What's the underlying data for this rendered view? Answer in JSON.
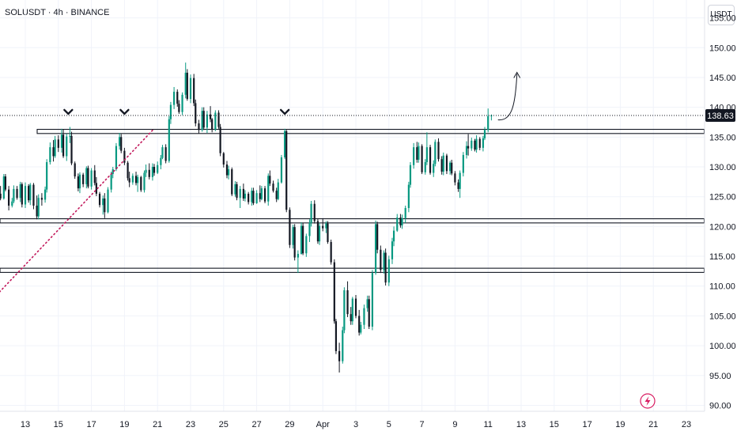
{
  "header": {
    "title": "SOLUSDT · 4h · BINANCE",
    "currency": "USDT"
  },
  "chart_data": {
    "type": "candlestick",
    "symbol": "SOLUSDT",
    "timeframe": "4h",
    "exchange": "BINANCE",
    "ylim": [
      89,
      158
    ],
    "y_ticks": [
      "155.00",
      "150.00",
      "145.00",
      "140.00",
      "135.00",
      "130.00",
      "125.00",
      "120.00",
      "115.00",
      "110.00",
      "105.00",
      "100.00",
      "95.00",
      "90.00"
    ],
    "x_ticks": [
      "13",
      "15",
      "17",
      "19",
      "21",
      "23",
      "25",
      "27",
      "29",
      "Apr",
      "3",
      "5",
      "7",
      "9",
      "11",
      "13",
      "15",
      "17",
      "19",
      "21",
      "23"
    ],
    "current_price": "138.63",
    "current_price_value": 138.63,
    "colors": {
      "up": "#089981",
      "down": "#131722",
      "support_line": "#131722",
      "trendline": "#c2185b",
      "grid": "#f0f3fa"
    },
    "horizontal_levels": [
      {
        "upper": 136.3,
        "lower": 135.6
      },
      {
        "upper": 121.3,
        "lower": 120.6
      },
      {
        "upper": 113.0,
        "lower": 112.3
      }
    ],
    "tops_marked": 3,
    "trendline": {
      "from_day": 7.0,
      "from_price": 96.0,
      "to_day": 20.0,
      "to_price": 137.0,
      "style": "dotted"
    },
    "projection": "up",
    "candles": [
      [
        11.5,
        125.5,
        126.8,
        124.4,
        124.7
      ],
      [
        11.7,
        124.7,
        128.8,
        124.5,
        128.4
      ],
      [
        11.8,
        128.4,
        128.8,
        125.9,
        126.2
      ],
      [
        12.0,
        126.2,
        126.8,
        122.7,
        123.5
      ],
      [
        12.2,
        123.5,
        124.8,
        123.2,
        124.2
      ],
      [
        12.3,
        124.2,
        126.9,
        123.9,
        126.3
      ],
      [
        12.5,
        126.3,
        126.8,
        124.5,
        124.8
      ],
      [
        12.7,
        124.8,
        127.5,
        124.1,
        127.1
      ],
      [
        12.8,
        127.1,
        127.4,
        123.2,
        123.7
      ],
      [
        13.0,
        123.7,
        127.4,
        123.1,
        126.8
      ],
      [
        13.2,
        126.8,
        127.1,
        124.0,
        124.4
      ],
      [
        13.3,
        124.4,
        127.3,
        123.6,
        127.0
      ],
      [
        13.5,
        127.0,
        127.3,
        122.9,
        123.5
      ],
      [
        13.7,
        123.5,
        125.2,
        121.2,
        121.7
      ],
      [
        13.8,
        121.7,
        125.4,
        121.2,
        124.8
      ],
      [
        14.0,
        124.8,
        125.6,
        123.5,
        124.5
      ],
      [
        14.2,
        124.5,
        126.7,
        124.0,
        126.2
      ],
      [
        14.3,
        126.2,
        131.3,
        125.7,
        130.8
      ],
      [
        14.5,
        130.8,
        134.1,
        130.4,
        133.3
      ],
      [
        14.7,
        133.3,
        134.5,
        130.9,
        131.8
      ],
      [
        14.8,
        131.8,
        135.2,
        131.5,
        134.6
      ],
      [
        15.0,
        134.6,
        135.3,
        132.5,
        133.2
      ],
      [
        15.2,
        133.2,
        136.4,
        132.4,
        135.4
      ],
      [
        15.3,
        135.4,
        136.3,
        131.5,
        131.8
      ],
      [
        15.5,
        131.8,
        135.6,
        131.0,
        135.1
      ],
      [
        15.7,
        135.1,
        136.7,
        134.0,
        135.2
      ],
      [
        15.8,
        135.2,
        135.9,
        130.3,
        130.6
      ],
      [
        16.0,
        130.6,
        130.9,
        128.0,
        128.4
      ],
      [
        16.2,
        128.4,
        128.9,
        125.9,
        126.4
      ],
      [
        16.3,
        126.4,
        129.1,
        125.6,
        128.7
      ],
      [
        16.5,
        128.7,
        129.0,
        126.6,
        127.1
      ],
      [
        16.7,
        127.1,
        130.1,
        126.4,
        129.8
      ],
      [
        16.8,
        129.8,
        130.2,
        126.4,
        126.7
      ],
      [
        17.0,
        126.7,
        129.8,
        126.2,
        129.4
      ],
      [
        17.2,
        129.4,
        130.3,
        126.9,
        127.3
      ],
      [
        17.3,
        127.3,
        128.3,
        125.1,
        125.5
      ],
      [
        17.5,
        125.5,
        125.8,
        123.2,
        123.6
      ],
      [
        17.7,
        123.6,
        125.2,
        122.0,
        124.7
      ],
      [
        17.8,
        124.7,
        125.6,
        121.4,
        122.4
      ],
      [
        18.0,
        122.4,
        126.6,
        122.2,
        126.2
      ],
      [
        18.2,
        126.2,
        129.2,
        125.7,
        128.8
      ],
      [
        18.3,
        128.8,
        130.0,
        128.1,
        129.6
      ],
      [
        18.5,
        129.6,
        134.0,
        129.3,
        133.5
      ],
      [
        18.7,
        133.5,
        135.7,
        132.9,
        135.0
      ],
      [
        18.8,
        135.0,
        135.5,
        132.3,
        132.7
      ],
      [
        19.0,
        132.7,
        133.2,
        130.3,
        130.7
      ],
      [
        19.2,
        130.7,
        131.0,
        127.7,
        128.1
      ],
      [
        19.3,
        128.1,
        129.2,
        126.6,
        127.4
      ],
      [
        19.5,
        127.4,
        128.9,
        127.0,
        128.5
      ],
      [
        19.7,
        128.5,
        129.2,
        126.9,
        127.3
      ],
      [
        19.8,
        127.3,
        128.7,
        125.8,
        128.3
      ],
      [
        20.0,
        128.3,
        128.5,
        125.8,
        126.1
      ],
      [
        20.2,
        126.1,
        129.4,
        125.7,
        129.0
      ],
      [
        20.3,
        129.0,
        130.4,
        128.3,
        129.5
      ],
      [
        20.5,
        129.5,
        130.6,
        127.9,
        128.3
      ],
      [
        20.7,
        128.3,
        130.6,
        127.7,
        130.0
      ],
      [
        20.8,
        130.0,
        130.5,
        128.5,
        129.0
      ],
      [
        21.0,
        129.0,
        130.9,
        128.8,
        130.3
      ],
      [
        21.2,
        130.3,
        132.0,
        129.6,
        131.5
      ],
      [
        21.3,
        131.5,
        133.7,
        131.3,
        133.3
      ],
      [
        21.5,
        133.3,
        133.8,
        130.6,
        131.0
      ],
      [
        21.7,
        131.0,
        138.5,
        130.7,
        138.0
      ],
      [
        21.8,
        138.0,
        140.9,
        137.2,
        140.4
      ],
      [
        22.0,
        140.4,
        143.4,
        139.7,
        142.6
      ],
      [
        22.2,
        142.6,
        143.0,
        140.1,
        140.6
      ],
      [
        22.3,
        140.6,
        141.2,
        138.9,
        139.2
      ],
      [
        22.5,
        139.2,
        142.5,
        138.7,
        142.1
      ],
      [
        22.7,
        142.1,
        147.5,
        141.5,
        145.8
      ],
      [
        22.8,
        145.8,
        146.4,
        141.1,
        141.4
      ],
      [
        23.0,
        141.4,
        145.5,
        140.7,
        144.9
      ],
      [
        23.2,
        144.9,
        145.6,
        140.2,
        140.7
      ],
      [
        23.3,
        140.7,
        141.3,
        136.8,
        137.3
      ],
      [
        23.5,
        137.3,
        137.9,
        135.6,
        136.2
      ],
      [
        23.7,
        136.2,
        140.0,
        135.9,
        139.4
      ],
      [
        23.8,
        139.4,
        140.0,
        136.2,
        136.6
      ],
      [
        24.0,
        136.6,
        139.4,
        135.7,
        138.8
      ],
      [
        24.2,
        138.8,
        140.2,
        137.5,
        138.0
      ],
      [
        24.3,
        138.0,
        138.2,
        135.8,
        136.3
      ],
      [
        24.5,
        136.3,
        139.5,
        136.0,
        139.1
      ],
      [
        24.7,
        139.1,
        139.5,
        136.4,
        136.7
      ],
      [
        24.8,
        136.7,
        137.2,
        131.8,
        132.3
      ],
      [
        25.0,
        132.3,
        132.5,
        129.9,
        130.4
      ],
      [
        25.2,
        130.4,
        131.0,
        128.1,
        128.6
      ],
      [
        25.3,
        128.6,
        130.2,
        127.9,
        129.6
      ],
      [
        25.5,
        129.6,
        129.9,
        125.1,
        125.4
      ],
      [
        25.7,
        125.4,
        127.6,
        125.0,
        127.1
      ],
      [
        25.8,
        127.1,
        127.5,
        124.4,
        124.8
      ],
      [
        26.0,
        124.8,
        126.8,
        123.1,
        126.3
      ],
      [
        26.2,
        126.3,
        127.2,
        124.3,
        124.7
      ],
      [
        26.3,
        124.7,
        126.1,
        124.2,
        125.5
      ],
      [
        26.5,
        125.5,
        125.8,
        123.7,
        124.1
      ],
      [
        26.7,
        124.1,
        126.5,
        123.5,
        126.0
      ],
      [
        26.8,
        126.0,
        126.5,
        123.6,
        123.9
      ],
      [
        27.0,
        123.9,
        126.1,
        123.8,
        125.6
      ],
      [
        27.2,
        125.6,
        126.9,
        124.1,
        124.6
      ],
      [
        27.3,
        124.6,
        126.8,
        124.4,
        126.4
      ],
      [
        27.5,
        126.4,
        126.8,
        123.9,
        124.2
      ],
      [
        27.7,
        124.2,
        128.9,
        123.5,
        128.5
      ],
      [
        27.8,
        128.5,
        129.4,
        126.8,
        127.2
      ],
      [
        28.0,
        127.2,
        127.7,
        125.7,
        126.0
      ],
      [
        28.2,
        126.0,
        126.5,
        124.1,
        124.6
      ],
      [
        28.3,
        124.6,
        128.0,
        124.4,
        127.4
      ],
      [
        28.5,
        127.4,
        132.0,
        127.2,
        131.6
      ],
      [
        28.7,
        131.6,
        136.4,
        131.3,
        136.0
      ],
      [
        28.8,
        136.0,
        136.2,
        122.4,
        122.8
      ],
      [
        29.0,
        122.8,
        123.2,
        116.4,
        116.9
      ],
      [
        29.2,
        116.9,
        120.3,
        116.3,
        119.9
      ],
      [
        29.3,
        119.9,
        120.4,
        114.3,
        114.8
      ],
      [
        29.5,
        114.8,
        116.0,
        112.2,
        115.4
      ],
      [
        29.7,
        115.4,
        120.7,
        115.3,
        120.1
      ],
      [
        29.8,
        120.1,
        120.6,
        115.2,
        115.5
      ],
      [
        30.0,
        115.5,
        118.8,
        114.9,
        118.4
      ],
      [
        30.2,
        118.4,
        121.2,
        117.4,
        120.6
      ],
      [
        30.3,
        120.6,
        124.3,
        120.0,
        123.8
      ],
      [
        30.5,
        123.8,
        124.4,
        120.5,
        120.9
      ],
      [
        30.7,
        120.9,
        121.3,
        117.1,
        117.5
      ],
      [
        30.8,
        117.5,
        120.6,
        116.9,
        120.1
      ],
      [
        31.0,
        120.1,
        121.4,
        119.2,
        119.7
      ],
      [
        31.2,
        119.7,
        120.9,
        118.9,
        120.5
      ],
      [
        31.3,
        120.5,
        120.9,
        117.1,
        117.4
      ],
      [
        31.5,
        117.4,
        117.8,
        113.6,
        114.0
      ],
      [
        31.7,
        114.0,
        114.5,
        103.7,
        104.1
      ],
      [
        31.8,
        104.1,
        104.5,
        98.6,
        99.1
      ],
      [
        32.0,
        99.1,
        100.5,
        95.5,
        97.4
      ],
      [
        32.2,
        97.4,
        103.2,
        97.0,
        102.6
      ],
      [
        32.3,
        102.6,
        109.8,
        102.1,
        109.3
      ],
      [
        32.5,
        109.3,
        110.8,
        104.8,
        105.3
      ],
      [
        32.7,
        105.3,
        106.5,
        103.5,
        104.1
      ],
      [
        32.8,
        104.1,
        108.2,
        103.5,
        107.9
      ],
      [
        33.0,
        107.9,
        108.5,
        104.6,
        105.0
      ],
      [
        33.2,
        105.0,
        106.0,
        101.7,
        102.2
      ],
      [
        33.3,
        102.2,
        104.0,
        101.9,
        103.5
      ],
      [
        33.5,
        103.5,
        106.9,
        102.8,
        106.3
      ],
      [
        33.7,
        106.3,
        108.4,
        105.7,
        107.8
      ],
      [
        33.8,
        107.8,
        108.4,
        102.8,
        103.2
      ],
      [
        34.0,
        103.2,
        112.7,
        102.6,
        112.2
      ],
      [
        34.2,
        112.2,
        121.0,
        111.9,
        120.4
      ],
      [
        34.3,
        120.4,
        120.8,
        115.5,
        116.1
      ],
      [
        34.5,
        116.1,
        116.8,
        112.2,
        112.7
      ],
      [
        34.7,
        112.7,
        116.0,
        112.1,
        115.6
      ],
      [
        34.8,
        115.6,
        116.3,
        110.1,
        110.6
      ],
      [
        35.0,
        110.6,
        115.1,
        110.0,
        114.5
      ],
      [
        35.2,
        114.5,
        118.1,
        113.7,
        117.5
      ],
      [
        35.3,
        117.5,
        120.0,
        116.7,
        119.3
      ],
      [
        35.5,
        119.3,
        122.1,
        119.1,
        121.5
      ],
      [
        35.7,
        121.5,
        122.1,
        119.8,
        120.2
      ],
      [
        35.8,
        120.2,
        122.0,
        119.6,
        121.4
      ],
      [
        36.0,
        121.4,
        123.5,
        120.6,
        123.1
      ],
      [
        36.2,
        123.1,
        127.5,
        122.4,
        127.0
      ],
      [
        36.3,
        127.0,
        130.8,
        126.5,
        130.3
      ],
      [
        36.5,
        130.3,
        134.0,
        129.7,
        133.3
      ],
      [
        36.7,
        133.3,
        134.2,
        130.7,
        131.2
      ],
      [
        36.8,
        131.2,
        134.1,
        130.7,
        133.5
      ],
      [
        37.0,
        133.5,
        133.8,
        128.8,
        129.1
      ],
      [
        37.2,
        129.1,
        131.3,
        128.7,
        130.8
      ],
      [
        37.3,
        130.8,
        135.8,
        130.3,
        133.3
      ],
      [
        37.5,
        133.3,
        133.7,
        128.7,
        129.0
      ],
      [
        37.7,
        129.0,
        131.1,
        128.3,
        130.5
      ],
      [
        37.8,
        130.5,
        134.6,
        130.1,
        134.2
      ],
      [
        38.0,
        134.2,
        134.8,
        130.9,
        131.3
      ],
      [
        38.2,
        131.3,
        131.8,
        128.7,
        129.2
      ],
      [
        38.3,
        129.2,
        132.4,
        128.6,
        131.9
      ],
      [
        38.5,
        131.9,
        132.2,
        128.8,
        129.3
      ],
      [
        38.7,
        129.3,
        131.0,
        128.7,
        130.7
      ],
      [
        38.8,
        130.7,
        131.2,
        128.6,
        128.9
      ],
      [
        39.0,
        128.9,
        129.3,
        126.9,
        127.4
      ],
      [
        39.2,
        127.4,
        127.9,
        125.8,
        126.3
      ],
      [
        39.3,
        126.3,
        129.4,
        124.8,
        129.0
      ],
      [
        39.5,
        129.0,
        132.5,
        128.4,
        132.0
      ],
      [
        39.7,
        132.0,
        134.3,
        131.4,
        133.5
      ],
      [
        39.8,
        133.5,
        135.5,
        131.9,
        133.1
      ],
      [
        40.0,
        133.1,
        134.9,
        132.7,
        134.4
      ],
      [
        40.2,
        134.4,
        134.7,
        132.6,
        132.9
      ],
      [
        40.3,
        132.9,
        135.3,
        132.4,
        134.7
      ],
      [
        40.5,
        134.7,
        135.0,
        132.8,
        133.2
      ],
      [
        40.7,
        133.2,
        135.2,
        132.6,
        134.8
      ],
      [
        40.8,
        134.8,
        136.7,
        134.5,
        136.2
      ],
      [
        41.0,
        136.2,
        139.8,
        135.8,
        138.5
      ],
      [
        41.2,
        138.5,
        138.8,
        137.8,
        138.63
      ]
    ]
  }
}
